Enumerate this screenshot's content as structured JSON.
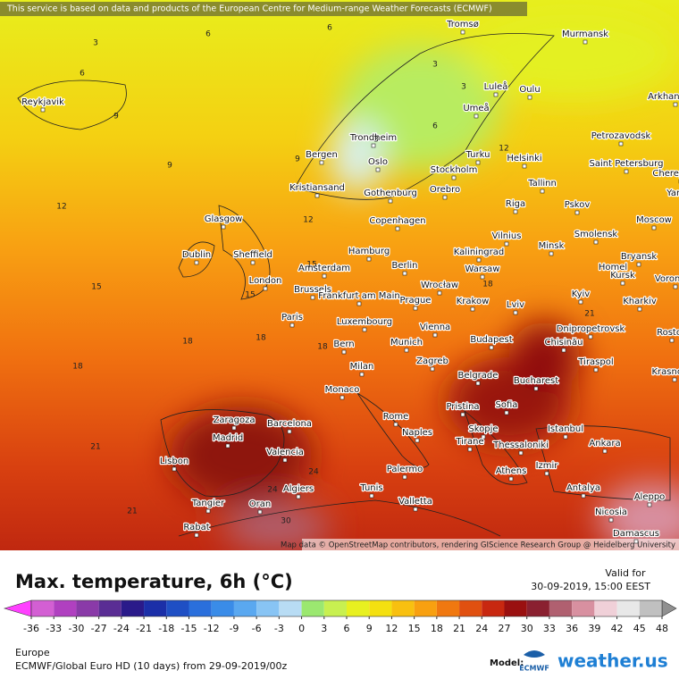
{
  "notice": "This service is based on data and products of the European Centre for Medium-range Weather Forecasts (ECMWF)",
  "attribution": "Map data © OpenStreetMap contributors, rendering GIScience Research Group @ Heidelberg University",
  "cities": [
    "Tromsø",
    "Murmansk",
    "Reykjavik",
    "Luleå",
    "Oulu",
    "Arkhangelsk",
    "Umeå",
    "Trondheim",
    "Petrozavodsk",
    "Bergen",
    "Turku",
    "Helsinki",
    "Oslo",
    "Stockholm",
    "Saint Petersburg",
    "Cherepovets",
    "Kristiansand",
    "Gothenburg",
    "Orebro",
    "Tallinn",
    "Yaroslavl",
    "Pskov",
    "Riga",
    "Glasgow",
    "Copenhagen",
    "Moscow",
    "Vilnius",
    "Smolensk",
    "Minsk",
    "Hamburg",
    "Kaliningrad",
    "Dublin",
    "Sheffield",
    "Bryansk",
    "Berlin",
    "Amsterdam",
    "Warsaw",
    "Homel",
    "London",
    "Kursk",
    "Voronezh",
    "Brussels",
    "Frankfurt am Main",
    "Wrocław",
    "Prague",
    "Krakow",
    "Kyiv",
    "Kharkiv",
    "Lviv",
    "Paris",
    "Luxembourg",
    "Dnipropetrovsk",
    "Rostov",
    "Vienna",
    "Chisinău",
    "Bern",
    "Munich",
    "Budapest",
    "Tiraspol",
    "Krasnodar",
    "Milan",
    "Zagreb",
    "Belgrade",
    "Bucharest",
    "Monaco",
    "Sofia",
    "Pristina",
    "Istanbul",
    "Rome",
    "Zaragoza",
    "Barcelona",
    "Skopje",
    "Naples",
    "Tirane",
    "Thessaloniki",
    "Ankara",
    "Madrid",
    "Valencia",
    "Lisbon",
    "Izmir",
    "Athens",
    "Palermo",
    "Tunis",
    "Algiers",
    "Antalya",
    "Aleppo",
    "Valletta",
    "Tangier",
    "Oran",
    "Nicosia",
    "Rabat",
    "Damascus"
  ],
  "contour_labels": [
    3,
    6,
    6,
    6,
    9,
    9,
    9,
    3,
    3,
    3,
    6,
    12,
    12,
    12,
    15,
    15,
    15,
    18,
    18,
    18,
    18,
    18,
    21,
    21,
    21,
    24,
    24,
    30
  ],
  "legend": {
    "title": "Max. temperature, 6h (°C)",
    "valid_label": "Valid for",
    "valid_time": "30-09-2019, 15:00 EEST",
    "ticks": [
      -36,
      -33,
      -30,
      -27,
      -24,
      -21,
      -18,
      -15,
      -12,
      -9,
      -6,
      -3,
      0,
      3,
      6,
      9,
      12,
      15,
      18,
      21,
      24,
      27,
      30,
      33,
      36,
      39,
      42,
      45,
      48
    ],
    "colors": [
      "#d35fd3",
      "#b040c0",
      "#8a3aa8",
      "#5a2d94",
      "#2a1a8a",
      "#1b2fa8",
      "#1f4fc4",
      "#2a6fdc",
      "#3a8ce8",
      "#5aa8f0",
      "#88c4f4",
      "#b8dcf4",
      "#9be870",
      "#c8f050",
      "#e8f020",
      "#f4e010",
      "#f8c010",
      "#f8a010",
      "#f07810",
      "#e05010",
      "#c82810",
      "#9a1010",
      "#8a2030",
      "#b06070",
      "#d890a0",
      "#f0d0d8",
      "#e8e8e8",
      "#c0c0c0"
    ],
    "under_color": "#ff40ff",
    "over_color": "#909090",
    "region": "Europe",
    "model_run": "ECMWF/Global Euro HD (10 days) from 29-09-2019/00z",
    "model_label": "Model:",
    "ecmwf": "ECMWF",
    "brand": "weather.us"
  }
}
